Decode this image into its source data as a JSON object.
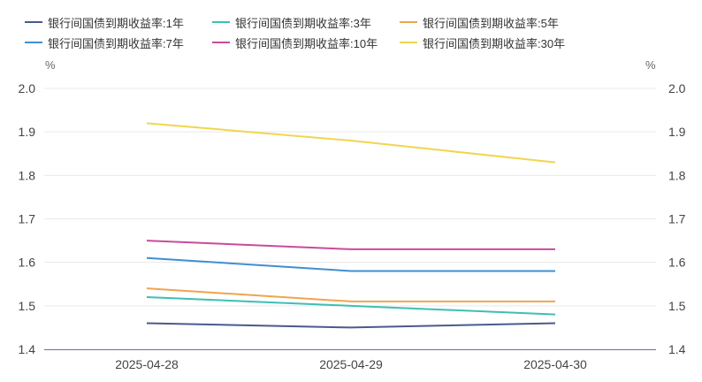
{
  "chart_data": {
    "type": "line",
    "x": [
      "2025-04-28",
      "2025-04-29",
      "2025-04-30"
    ],
    "y_unit_left": "%",
    "y_unit_right": "%",
    "ylim": [
      1.4,
      2.0
    ],
    "y_ticks": [
      "1.4",
      "1.5",
      "1.6",
      "1.7",
      "1.8",
      "1.9",
      "2.0"
    ],
    "grid": true,
    "legend_position": "top",
    "series": [
      {
        "name": "银行间国债到期收益率:1年",
        "color": "#4a5a8c",
        "values": [
          1.46,
          1.45,
          1.46
        ]
      },
      {
        "name": "银行间国债到期收益率:3年",
        "color": "#3dbfb4",
        "values": [
          1.52,
          1.5,
          1.48
        ]
      },
      {
        "name": "银行间国债到期收益率:5年",
        "color": "#f0a44e",
        "values": [
          1.54,
          1.51,
          1.51
        ]
      },
      {
        "name": "银行间国债到期收益率:7年",
        "color": "#3f8fd2",
        "values": [
          1.61,
          1.58,
          1.58
        ]
      },
      {
        "name": "银行间国债到期收益率:10年",
        "color": "#c94b9b",
        "values": [
          1.65,
          1.63,
          1.63
        ]
      },
      {
        "name": "银行间国债到期收益率:30年",
        "color": "#f2d54e",
        "values": [
          1.92,
          1.88,
          1.83
        ]
      }
    ]
  }
}
